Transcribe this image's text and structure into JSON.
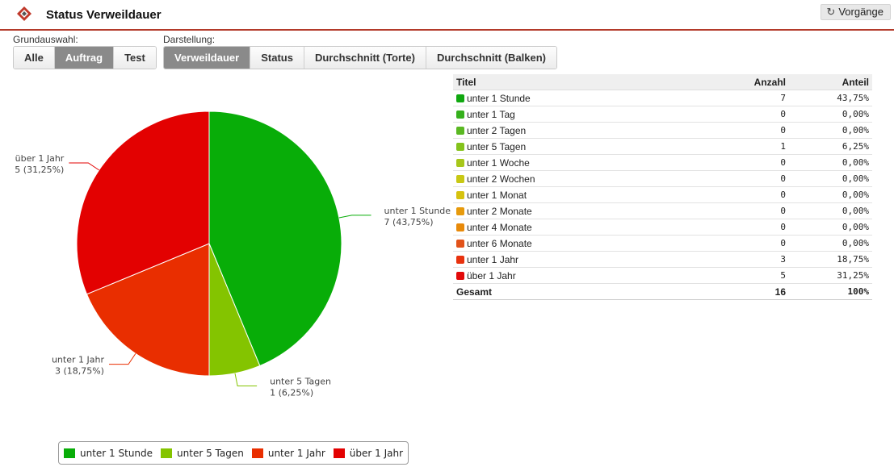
{
  "header": {
    "title": "Status Verweildauer",
    "back_label": "Vorgänge"
  },
  "filters": {
    "grundauswahl_label": "Grundauswahl:",
    "grundauswahl": [
      {
        "label": "Alle",
        "active": false
      },
      {
        "label": "Auftrag",
        "active": true
      },
      {
        "label": "Test",
        "active": false
      }
    ],
    "darstellung_label": "Darstellung:",
    "darstellung": [
      {
        "label": "Verweildauer",
        "active": true
      },
      {
        "label": "Status",
        "active": false
      },
      {
        "label": "Durchschnitt (Torte)",
        "active": false
      },
      {
        "label": "Durchschnitt (Balken)",
        "active": false
      }
    ]
  },
  "table": {
    "headers": [
      "Titel",
      "Anzahl",
      "Anteil"
    ],
    "rows": [
      {
        "title": "unter 1 Stunde",
        "count": "7",
        "share": "43,75%",
        "color": "#10a810"
      },
      {
        "title": "unter 1 Tag",
        "count": "0",
        "share": "0,00%",
        "color": "#35b01c"
      },
      {
        "title": "unter 2 Tagen",
        "count": "0",
        "share": "0,00%",
        "color": "#5ab822"
      },
      {
        "title": "unter 5 Tagen",
        "count": "1",
        "share": "6,25%",
        "color": "#84c31b"
      },
      {
        "title": "unter 1 Woche",
        "count": "0",
        "share": "0,00%",
        "color": "#a7c71a"
      },
      {
        "title": "unter 2 Wochen",
        "count": "0",
        "share": "0,00%",
        "color": "#c8c814"
      },
      {
        "title": "unter 1 Monat",
        "count": "0",
        "share": "0,00%",
        "color": "#d6c20e"
      },
      {
        "title": "unter 2 Monate",
        "count": "0",
        "share": "0,00%",
        "color": "#e79a0c"
      },
      {
        "title": "unter 4 Monate",
        "count": "0",
        "share": "0,00%",
        "color": "#e88a0a"
      },
      {
        "title": "unter 6 Monate",
        "count": "0",
        "share": "0,00%",
        "color": "#e2531a"
      },
      {
        "title": "unter 1 Jahr",
        "count": "3",
        "share": "18,75%",
        "color": "#e8320e"
      },
      {
        "title": "über 1 Jahr",
        "count": "5",
        "share": "31,25%",
        "color": "#e20909"
      }
    ],
    "total": {
      "title": "Gesamt",
      "count": "16",
      "share": "100%"
    }
  },
  "chart_data": {
    "type": "pie",
    "slices": [
      {
        "name": "unter 1 Stunde",
        "value": 7,
        "label": "7 (43,75%)",
        "color": "#08ad08"
      },
      {
        "name": "unter 5 Tagen",
        "value": 1,
        "label": "1 (6,25%)",
        "color": "#84c400"
      },
      {
        "name": "unter 1 Jahr",
        "value": 3,
        "label": "3 (18,75%)",
        "color": "#e92e00"
      },
      {
        "name": "über 1 Jahr",
        "value": 5,
        "label": "5 (31,25%)",
        "color": "#e30101"
      }
    ],
    "legend": [
      "unter 1 Stunde",
      "unter 5 Tagen",
      "unter 1 Jahr",
      "über 1 Jahr"
    ],
    "legend_position": "bottom"
  }
}
